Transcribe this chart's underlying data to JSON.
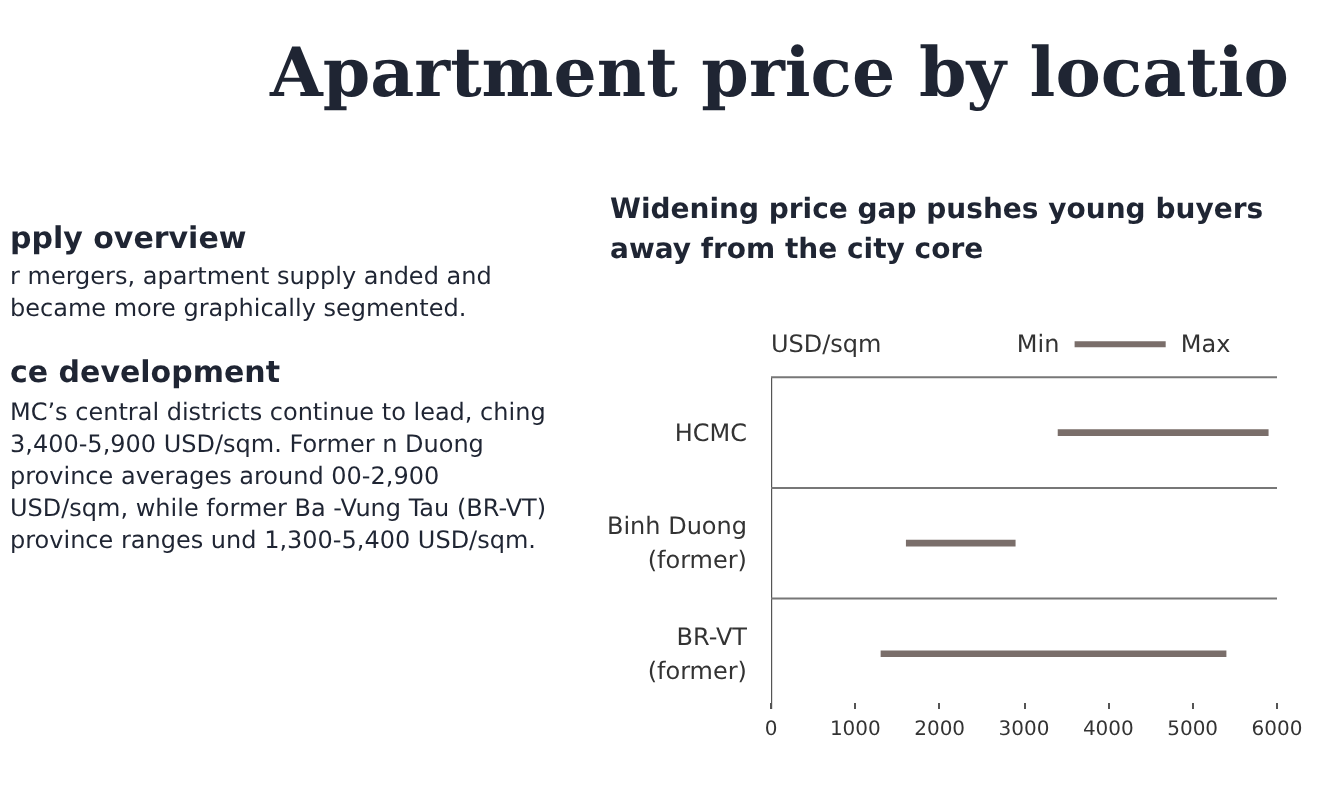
{
  "chart_data": {
    "type": "bar",
    "orientation": "horizontal",
    "title": "Apartment price by locatio",
    "subtitle": "Widening price gap pushes young buyers away from the city core",
    "ylabel": "USD/sqm",
    "categories": [
      "HCMC",
      "Binh Duong (former)",
      "BR-VT (former)"
    ],
    "base": [
      3400,
      1600,
      1300
    ],
    "values": [
      2500,
      1300,
      4100
    ],
    "color": "#7a6e6a",
    "xlim": [
      0,
      6000
    ],
    "xticks": [
      0,
      1000,
      2000,
      3000,
      4000,
      5000,
      6000
    ],
    "grid": "y",
    "annotations": [
      "pply overview",
      "r mergers, apartment supply anded and became more graphically segmented.",
      "ce development",
      "MC’s central districts continue to lead, ching 3,400-5,900 USD/sqm. Former n Duong province averages around 00-2,900 USD/sqm, while former Ba -Vung Tau (BR-VT) province ranges und 1,300-5,400 USD/sqm.",
      "Min",
      "Max"
    ]
  }
}
